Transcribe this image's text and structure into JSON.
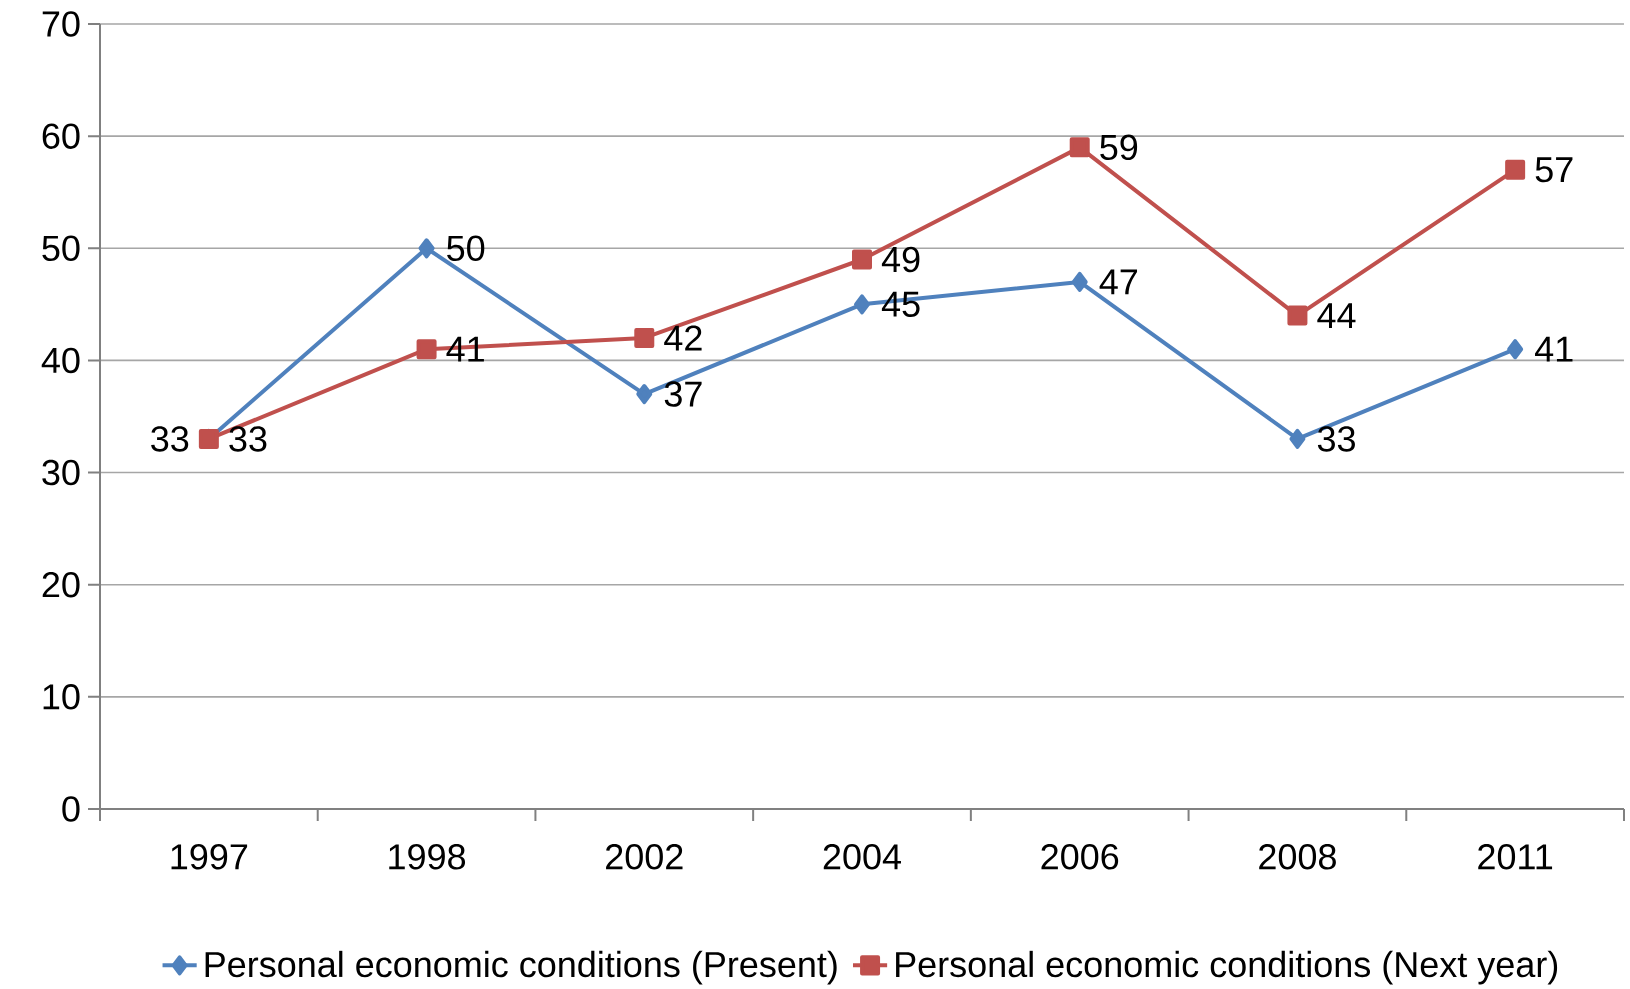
{
  "chart_data": {
    "type": "line",
    "categories": [
      "1997",
      "1998",
      "2002",
      "2004",
      "2006",
      "2008",
      "2011"
    ],
    "series": [
      {
        "name": "Personal economic conditions (Present)",
        "color": "#4f81bd",
        "marker": "diamond",
        "values": [
          33,
          50,
          37,
          45,
          47,
          33,
          41
        ]
      },
      {
        "name": "Personal economic conditions (Next year)",
        "color": "#c0504d",
        "marker": "square",
        "values": [
          33,
          41,
          42,
          49,
          59,
          44,
          57
        ]
      }
    ],
    "ylim": [
      0,
      70
    ],
    "yticks": [
      0,
      10,
      20,
      30,
      40,
      50,
      60,
      70
    ],
    "grid": "y",
    "legend": "bottom",
    "data_labels": true,
    "line_style": "solid"
  }
}
